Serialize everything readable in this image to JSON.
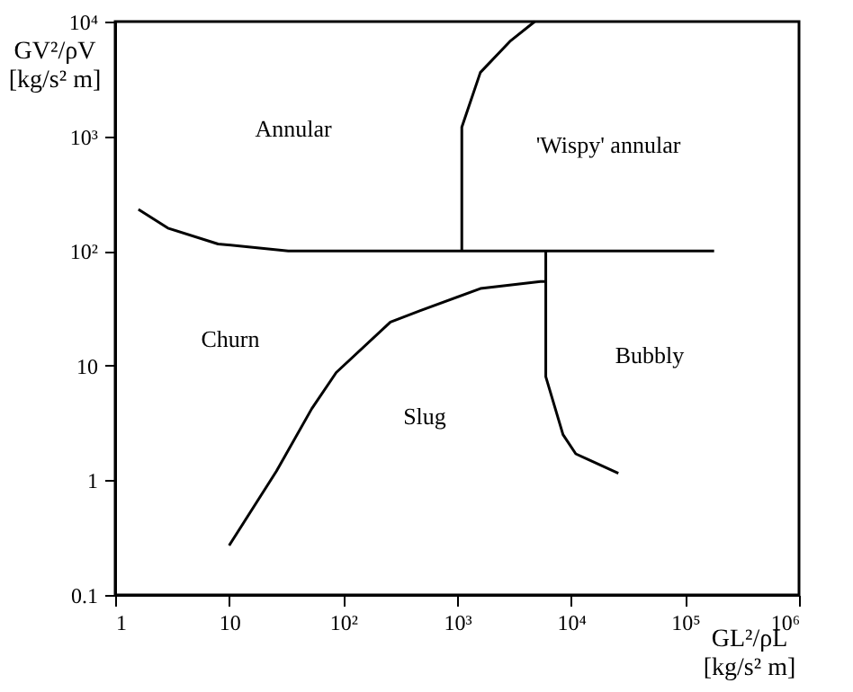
{
  "chart_data": {
    "type": "line",
    "xlabel": "GL²/ρL\n[kg/s² m]",
    "ylabel": "GV²/ρV\n[kg/s² m]",
    "log": "xy",
    "grid": false,
    "marker": "none",
    "line_style": "solid",
    "xlim": [
      1,
      1000000
    ],
    "ylim": [
      0.1,
      10000
    ],
    "xticks": [
      1,
      10,
      {
        "value": 100,
        "label": "10²"
      },
      {
        "value": 1000,
        "label": "10³"
      },
      {
        "value": 10000,
        "label": "10⁴"
      },
      {
        "value": 100000,
        "label": "10⁵"
      },
      {
        "value": 1000000,
        "label": "10⁶"
      }
    ],
    "yticks": [
      0.1,
      1,
      10,
      {
        "value": 100,
        "label": "10²"
      },
      {
        "value": 1000,
        "label": "10³"
      },
      {
        "value": 10000,
        "label": "10⁴"
      }
    ],
    "series": [
      {
        "color": "#000000",
        "x": [
          1.6,
          2.9,
          8,
          33,
          180000
        ],
        "values": [
          230,
          158,
          115,
          100,
          100
        ]
      },
      {
        "color": "#000000",
        "x": [
          1100,
          1100,
          1600,
          2900,
          4800
        ],
        "values": [
          100,
          1200,
          3600,
          6700,
          10000
        ]
      },
      {
        "color": "#000000",
        "x": [
          10,
          26,
          53,
          87,
          260,
          470,
          1600,
          5400,
          6000
        ],
        "values": [
          0.27,
          1.2,
          4.2,
          8.7,
          24,
          30,
          47,
          54,
          54
        ]
      },
      {
        "color": "#000000",
        "x": [
          6000,
          6000,
          8500,
          11000,
          26000
        ],
        "values": [
          100,
          8,
          2.5,
          1.7,
          1.15
        ]
      }
    ],
    "annotations": [
      "Annular",
      "'Wispy' annular",
      "Churn",
      "Slug",
      "Bubbly"
    ]
  }
}
